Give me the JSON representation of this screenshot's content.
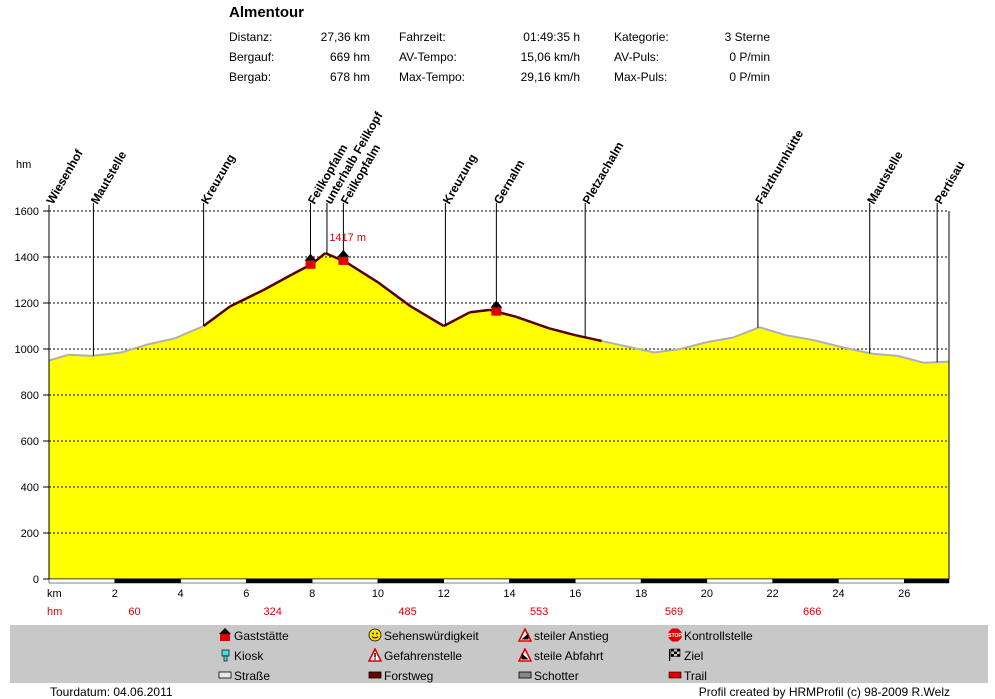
{
  "title": "Almentour",
  "stats": [
    {
      "label": "Distanz:",
      "value": "27,36 km"
    },
    {
      "label": "Bergauf:",
      "value": "669 hm"
    },
    {
      "label": "Bergab:",
      "value": "678 hm"
    },
    {
      "label": "Fahrzeit:",
      "value": "01:49:35 h"
    },
    {
      "label": "AV-Tempo:",
      "value": "15,06 km/h"
    },
    {
      "label": "Max-Tempo:",
      "value": "29,16 km/h"
    },
    {
      "label": "Kategorie:",
      "value": "3 Sterne"
    },
    {
      "label": "AV-Puls:",
      "value": "0 P/min"
    },
    {
      "label": "Max-Puls:",
      "value": "0 P/min"
    }
  ],
  "colors": {
    "fill": "#ffff00",
    "forstweg": "#5a0000",
    "strasse": "#b0b0b0",
    "highlight": "#e00000",
    "legend_bg": "#c8c8c8"
  },
  "chart_data": {
    "type": "area",
    "ylabel": "hm",
    "xlabel": "km",
    "xlim": [
      0,
      27.36
    ],
    "ylim": [
      0,
      1600
    ],
    "y_ticks": [
      "0",
      "200",
      "400",
      "600",
      "800",
      "1000",
      "1200",
      "1400",
      "1600"
    ],
    "x_ticks": [
      "2",
      "4",
      "6",
      "8",
      "10",
      "12",
      "14",
      "16",
      "18",
      "20",
      "22",
      "24",
      "26"
    ],
    "grid": true,
    "profile": [
      {
        "x": 0.0,
        "y": 950
      },
      {
        "x": 0.6,
        "y": 975
      },
      {
        "x": 1.3,
        "y": 970
      },
      {
        "x": 2.2,
        "y": 985
      },
      {
        "x": 3.0,
        "y": 1020
      },
      {
        "x": 3.8,
        "y": 1045
      },
      {
        "x": 4.7,
        "y": 1100
      },
      {
        "x": 5.5,
        "y": 1185
      },
      {
        "x": 6.5,
        "y": 1255
      },
      {
        "x": 7.4,
        "y": 1325
      },
      {
        "x": 8.0,
        "y": 1370
      },
      {
        "x": 8.4,
        "y": 1417
      },
      {
        "x": 9.0,
        "y": 1380
      },
      {
        "x": 10.0,
        "y": 1290
      },
      {
        "x": 11.0,
        "y": 1185
      },
      {
        "x": 12.0,
        "y": 1100
      },
      {
        "x": 12.8,
        "y": 1160
      },
      {
        "x": 13.4,
        "y": 1170
      },
      {
        "x": 14.2,
        "y": 1140
      },
      {
        "x": 15.2,
        "y": 1090
      },
      {
        "x": 16.0,
        "y": 1060
      },
      {
        "x": 16.8,
        "y": 1035
      },
      {
        "x": 17.6,
        "y": 1010
      },
      {
        "x": 18.4,
        "y": 985
      },
      {
        "x": 19.2,
        "y": 1000
      },
      {
        "x": 20.0,
        "y": 1030
      },
      {
        "x": 20.8,
        "y": 1050
      },
      {
        "x": 21.6,
        "y": 1095
      },
      {
        "x": 22.4,
        "y": 1060
      },
      {
        "x": 23.2,
        "y": 1040
      },
      {
        "x": 24.2,
        "y": 1005
      },
      {
        "x": 25.0,
        "y": 980
      },
      {
        "x": 25.8,
        "y": 970
      },
      {
        "x": 26.6,
        "y": 940
      },
      {
        "x": 27.36,
        "y": 945
      }
    ],
    "forstweg_ranges": [
      [
        4.8,
        16.8
      ]
    ],
    "peak_label": "1417 m",
    "peak": {
      "x": 8.4,
      "y": 1417
    },
    "waypoints": [
      {
        "x": 0.0,
        "name": "Wiesenhof",
        "hm": ""
      },
      {
        "x": 1.35,
        "name": "Mautstelle",
        "hm": "60"
      },
      {
        "x": 4.7,
        "name": "Kreuzung",
        "hm": ""
      },
      {
        "x": 7.95,
        "name": "Feilkopfalm",
        "hm": "324"
      },
      {
        "x": 8.45,
        "name": "unterhalb Feilkopf",
        "hm": ""
      },
      {
        "x": 8.95,
        "name": "Feilkopfalm",
        "hm": ""
      },
      {
        "x": 12.05,
        "name": "Kreuzung",
        "hm": "485"
      },
      {
        "x": 13.6,
        "name": "Gernalm",
        "hm": "553"
      },
      {
        "x": 16.3,
        "name": "Pletzachalm",
        "hm": ""
      },
      {
        "x": 21.55,
        "name": "Falzthurnhütte",
        "hm": "569"
      },
      {
        "x": 24.95,
        "name": "Mautstelle",
        "hm": "666"
      },
      {
        "x": 27.0,
        "name": "Pertisau",
        "hm": ""
      }
    ],
    "gaststaetten": [
      7.95,
      8.95,
      13.6
    ],
    "hm_row_label": "hm",
    "hm_values": [
      {
        "x": 2.6,
        "value": "60"
      },
      {
        "x": 6.8,
        "value": "324"
      },
      {
        "x": 10.9,
        "value": "485"
      },
      {
        "x": 14.9,
        "value": "553"
      },
      {
        "x": 19.0,
        "value": "569"
      },
      {
        "x": 23.2,
        "value": "666"
      }
    ]
  },
  "legend": [
    {
      "icon": "gaststaette-icon",
      "label": "Gaststätte"
    },
    {
      "icon": "kiosk-icon",
      "label": "Kiosk"
    },
    {
      "icon": "strasse-icon",
      "label": "Straße"
    },
    {
      "icon": "smiley-icon",
      "label": "Sehenswürdigkeit"
    },
    {
      "icon": "warning-icon",
      "label": "Gefahrenstelle"
    },
    {
      "icon": "forstweg-icon",
      "label": "Forstweg"
    },
    {
      "icon": "steep-up-icon",
      "label": "steiler Anstieg"
    },
    {
      "icon": "steep-down-icon",
      "label": "steile Abfahrt"
    },
    {
      "icon": "schotter-icon",
      "label": "Schotter"
    },
    {
      "icon": "stop-icon",
      "label": "Kontrollstelle"
    },
    {
      "icon": "finish-flag-icon",
      "label": "Ziel"
    },
    {
      "icon": "trail-icon",
      "label": "Trail"
    }
  ],
  "footer": {
    "left": "Tourdatum: 04.06.2011",
    "right": "Profil created by HRMProfil (c) 98-2009 R.Welz"
  }
}
